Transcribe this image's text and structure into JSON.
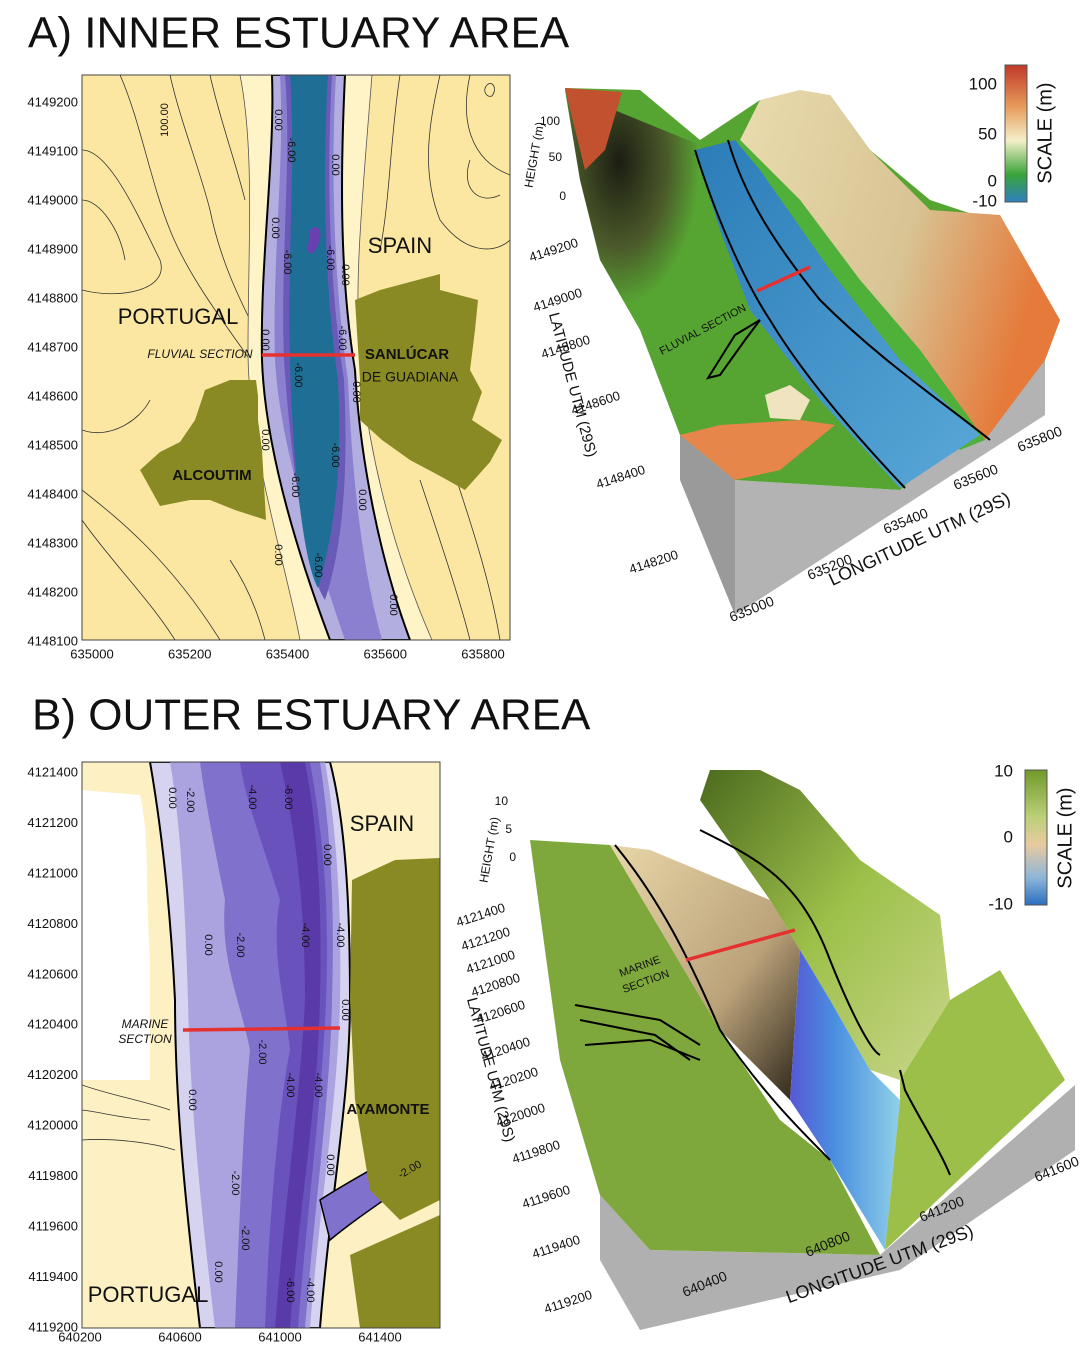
{
  "panels": [
    {
      "title": "A) INNER ESTUARY AREA",
      "map": {
        "y_ticks": [
          4149200,
          4149100,
          4149000,
          4148900,
          4148800,
          4148700,
          4148600,
          4148500,
          4148400,
          4148300,
          4148200,
          4148100
        ],
        "x_ticks": [
          635000,
          635200,
          635400,
          635600,
          635800
        ],
        "places": [
          "SPAIN",
          "PORTUGAL",
          "SANLÚCAR",
          "DE GUADIANA",
          "ALCOUTIM"
        ],
        "section": [
          "FLUVIAL SECTION"
        ],
        "contours": [
          "100.00",
          "0.00",
          "-6.00",
          "0.00",
          "0.00",
          "-6.00",
          "-6.00",
          "0.00",
          "0.00",
          "-6.00",
          "-6.00",
          "0.00",
          "0.00",
          "-6.00",
          "-6.00",
          "0.00",
          "0.00",
          "-6.00",
          "0.00"
        ]
      },
      "surface": {
        "height_label": "HEIGHT (m)",
        "height_ticks": [
          100,
          50,
          0
        ],
        "lat_label": "LATITUDE UTM (29S)",
        "lat_ticks": [
          4149200,
          4149000,
          4148800,
          4148600,
          4148400,
          4148200
        ],
        "lon_label": "LONGITUDE UTM (29S)",
        "lon_ticks": [
          635000,
          635200,
          635400,
          635600,
          635800
        ],
        "section": [
          "FLUVIAL SECTION"
        ],
        "scale_label": "SCALE (m)",
        "scale_ticks": [
          100,
          50,
          0,
          -10
        ]
      }
    },
    {
      "title": "B) OUTER ESTUARY AREA",
      "map": {
        "y_ticks": [
          4121400,
          4121200,
          4121000,
          4120800,
          4120600,
          4120400,
          4120200,
          4120000,
          4119800,
          4119600,
          4119400,
          4119200
        ],
        "x_ticks": [
          640200,
          640600,
          641000,
          641400
        ],
        "places": [
          "SPAIN",
          "AYAMONTE",
          "PORTUGAL"
        ],
        "section": [
          "MARINE",
          "SECTION"
        ],
        "contours": [
          "0.00",
          "-2.00",
          "-4.00",
          "-6.00",
          "0.00",
          "0.00",
          "-2.00",
          "-4.00",
          "-4.00",
          "0.00",
          "-2.00",
          "0.00",
          "-4.00",
          "-4.00",
          "0.00",
          "-2.00",
          "-2.00",
          "0.00",
          "-6.00",
          "-4.00",
          "-2.00"
        ]
      },
      "surface": {
        "height_label": "HEIGHT (m)",
        "height_ticks": [
          10,
          5,
          0
        ],
        "lat_label": "LATITUDE UTM (29S)",
        "lat_ticks": [
          4121400,
          4121200,
          4121000,
          4120800,
          4120600,
          4120400,
          4120200,
          4120000,
          4119800,
          4119600,
          4119400,
          4119200
        ],
        "lon_label": "LONGITUDE UTM (29S)",
        "lon_ticks": [
          640400,
          640800,
          641200,
          641600
        ],
        "section": [
          "MARINE",
          "SECTION"
        ],
        "scale_label": "SCALE (m)",
        "scale_ticks": [
          10,
          0,
          -10
        ]
      }
    }
  ]
}
